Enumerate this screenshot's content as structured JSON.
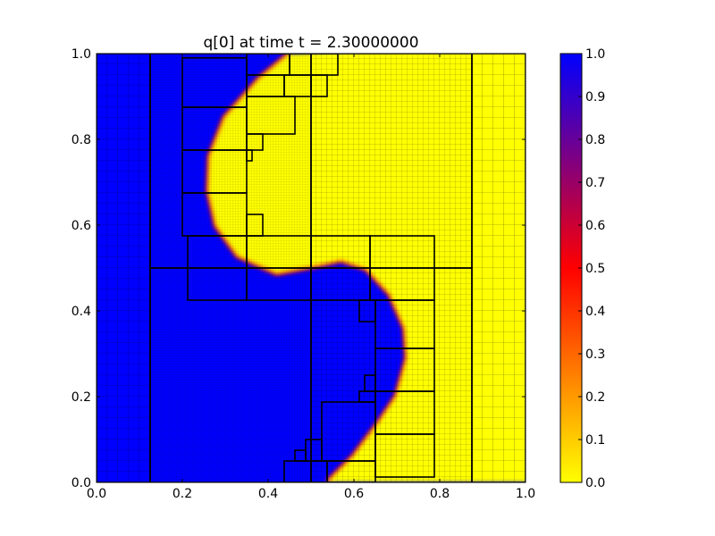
{
  "chart_data": {
    "type": "heatmap",
    "title": "q[0] at time t =      2.30000000",
    "xlabel": "",
    "ylabel": "",
    "xlim": [
      0.0,
      1.0
    ],
    "ylim": [
      0.0,
      1.0
    ],
    "x_ticks": [
      "0.0",
      "0.2",
      "0.4",
      "0.6",
      "0.8",
      "1.0"
    ],
    "y_ticks": [
      "0.0",
      "0.2",
      "0.4",
      "0.6",
      "0.8",
      "1.0"
    ],
    "colorbar": {
      "range": [
        0.0,
        1.0
      ],
      "ticks": [
        "0.0",
        "0.1",
        "0.2",
        "0.3",
        "0.4",
        "0.5",
        "0.6",
        "0.7",
        "0.8",
        "0.9",
        "1.0"
      ],
      "colors": [
        "#ffff00",
        "#ff8000",
        "#ff0000",
        "#800080",
        "#0000ff"
      ]
    },
    "field_colors": {
      "high": "#0000ff",
      "low": "#ffff00"
    },
    "interface_curve": [
      [
        0.452,
        1.0
      ],
      [
        0.38,
        0.94
      ],
      [
        0.3,
        0.85
      ],
      [
        0.265,
        0.76
      ],
      [
        0.262,
        0.68
      ],
      [
        0.28,
        0.6
      ],
      [
        0.33,
        0.53
      ],
      [
        0.42,
        0.49
      ],
      [
        0.5,
        0.505
      ],
      [
        0.57,
        0.52
      ],
      [
        0.63,
        0.5
      ],
      [
        0.685,
        0.44
      ],
      [
        0.72,
        0.36
      ],
      [
        0.725,
        0.29
      ],
      [
        0.7,
        0.2
      ],
      [
        0.66,
        0.14
      ],
      [
        0.6,
        0.06
      ],
      [
        0.54,
        0.0
      ]
    ],
    "amr_patches": [
      [
        0.0,
        0.0,
        0.125,
        1.0
      ],
      [
        0.875,
        0.0,
        1.0,
        1.0
      ],
      [
        0.125,
        0.0,
        0.5,
        0.5
      ],
      [
        0.5,
        0.0,
        0.875,
        0.5
      ],
      [
        0.125,
        0.5,
        0.5,
        1.0
      ],
      [
        0.5,
        0.5,
        0.875,
        1.0
      ],
      [
        0.2,
        0.99,
        0.35,
        0.875
      ],
      [
        0.2,
        0.875,
        0.35,
        0.775
      ],
      [
        0.2,
        0.775,
        0.35,
        0.675
      ],
      [
        0.2,
        0.675,
        0.35,
        0.575
      ],
      [
        0.35,
        1.0,
        0.45,
        0.95
      ],
      [
        0.45,
        1.0,
        0.5625,
        0.95
      ],
      [
        0.35,
        0.95,
        0.4375,
        0.9
      ],
      [
        0.4375,
        0.95,
        0.5,
        0.9
      ],
      [
        0.5,
        0.95,
        0.5375,
        0.9
      ],
      [
        0.35,
        0.9,
        0.4625,
        0.8125
      ],
      [
        0.35,
        0.8125,
        0.3875,
        0.775
      ],
      [
        0.35,
        0.775,
        0.3625,
        0.75
      ],
      [
        0.35,
        0.625,
        0.3875,
        0.575
      ],
      [
        0.2125,
        0.575,
        0.35,
        0.425
      ],
      [
        0.35,
        0.575,
        0.5,
        0.425
      ],
      [
        0.5,
        0.575,
        0.6375,
        0.425
      ],
      [
        0.6375,
        0.575,
        0.7875,
        0.425
      ],
      [
        0.6125,
        0.425,
        0.65,
        0.375
      ],
      [
        0.65,
        0.425,
        0.7875,
        0.3125
      ],
      [
        0.65,
        0.3125,
        0.7875,
        0.2125
      ],
      [
        0.65,
        0.2125,
        0.7875,
        0.1125
      ],
      [
        0.65,
        0.1125,
        0.7875,
        0.0125
      ],
      [
        0.625,
        0.25,
        0.65,
        0.2125
      ],
      [
        0.6125,
        0.2125,
        0.65,
        0.1875
      ],
      [
        0.525,
        0.1875,
        0.65,
        0.05
      ],
      [
        0.4875,
        0.1,
        0.525,
        0.05
      ],
      [
        0.4625,
        0.075,
        0.4875,
        0.05
      ],
      [
        0.4375,
        0.05,
        0.5375,
        0.0
      ],
      [
        0.5375,
        0.05,
        0.65,
        0.0
      ]
    ]
  }
}
